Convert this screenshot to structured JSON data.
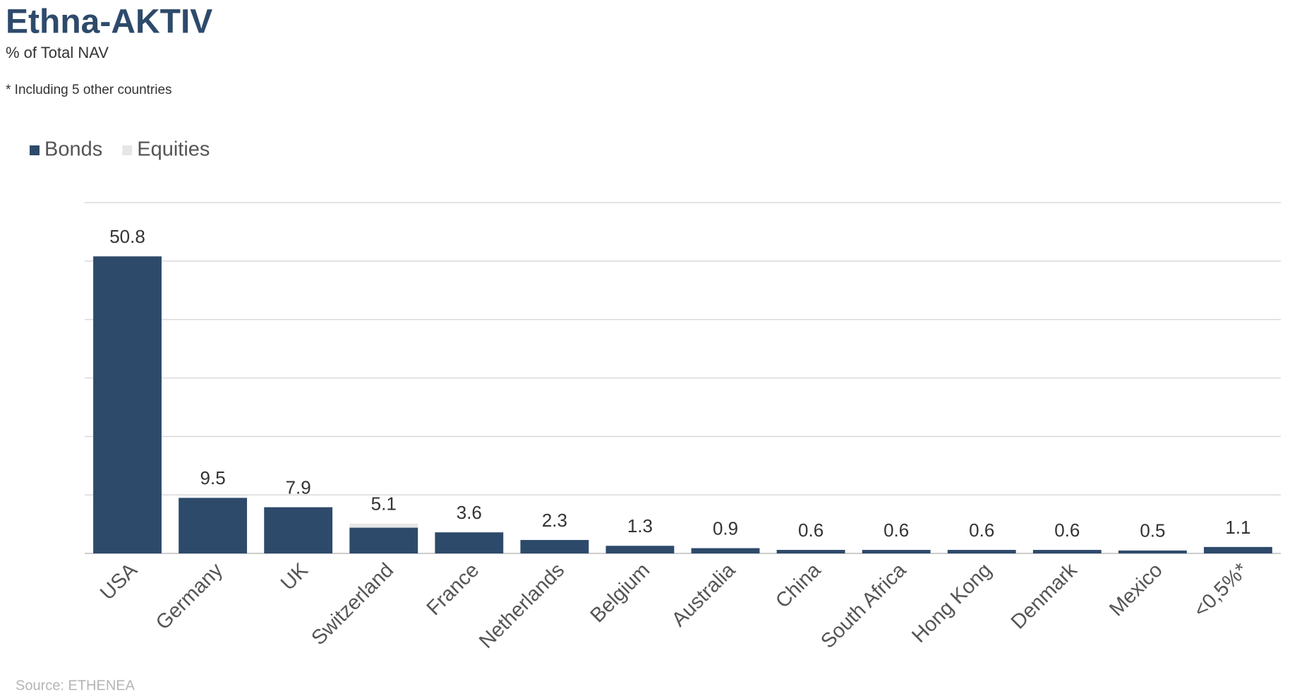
{
  "chart_data": {
    "type": "stacked_bar",
    "title": "Ethna-AKTIV",
    "subtitle": "% of Total NAV",
    "note": "* Including 5 other countries",
    "source": "Source: ETHENEA",
    "categories": [
      "USA",
      "Germany",
      "UK",
      "Switzerland",
      "France",
      "Netherlands",
      "Belgium",
      "Australia",
      "China",
      "South Africa",
      "Hong Kong",
      "Denmark",
      "Mexico",
      "<0,5%*"
    ],
    "series": [
      {
        "name": "Bonds",
        "color": "#2e4a6b",
        "values": [
          50.8,
          9.5,
          7.9,
          4.4,
          3.6,
          2.3,
          1.3,
          0.9,
          0.6,
          0.6,
          0.6,
          0.6,
          0.5,
          1.1
        ]
      },
      {
        "name": "Equities",
        "color": "#e6e6e6",
        "values": [
          0,
          0,
          0,
          0.7,
          0,
          0,
          0,
          0,
          0,
          0,
          0,
          0,
          0,
          0
        ]
      }
    ],
    "totals": [
      50.8,
      9.5,
      7.9,
      5.1,
      3.6,
      2.3,
      1.3,
      0.9,
      0.6,
      0.6,
      0.6,
      0.6,
      0.5,
      1.1
    ],
    "ylim": [
      0,
      60
    ],
    "yticks": [
      0,
      10,
      20,
      30,
      40,
      50,
      60
    ],
    "grid": true,
    "legend": "top-left"
  }
}
